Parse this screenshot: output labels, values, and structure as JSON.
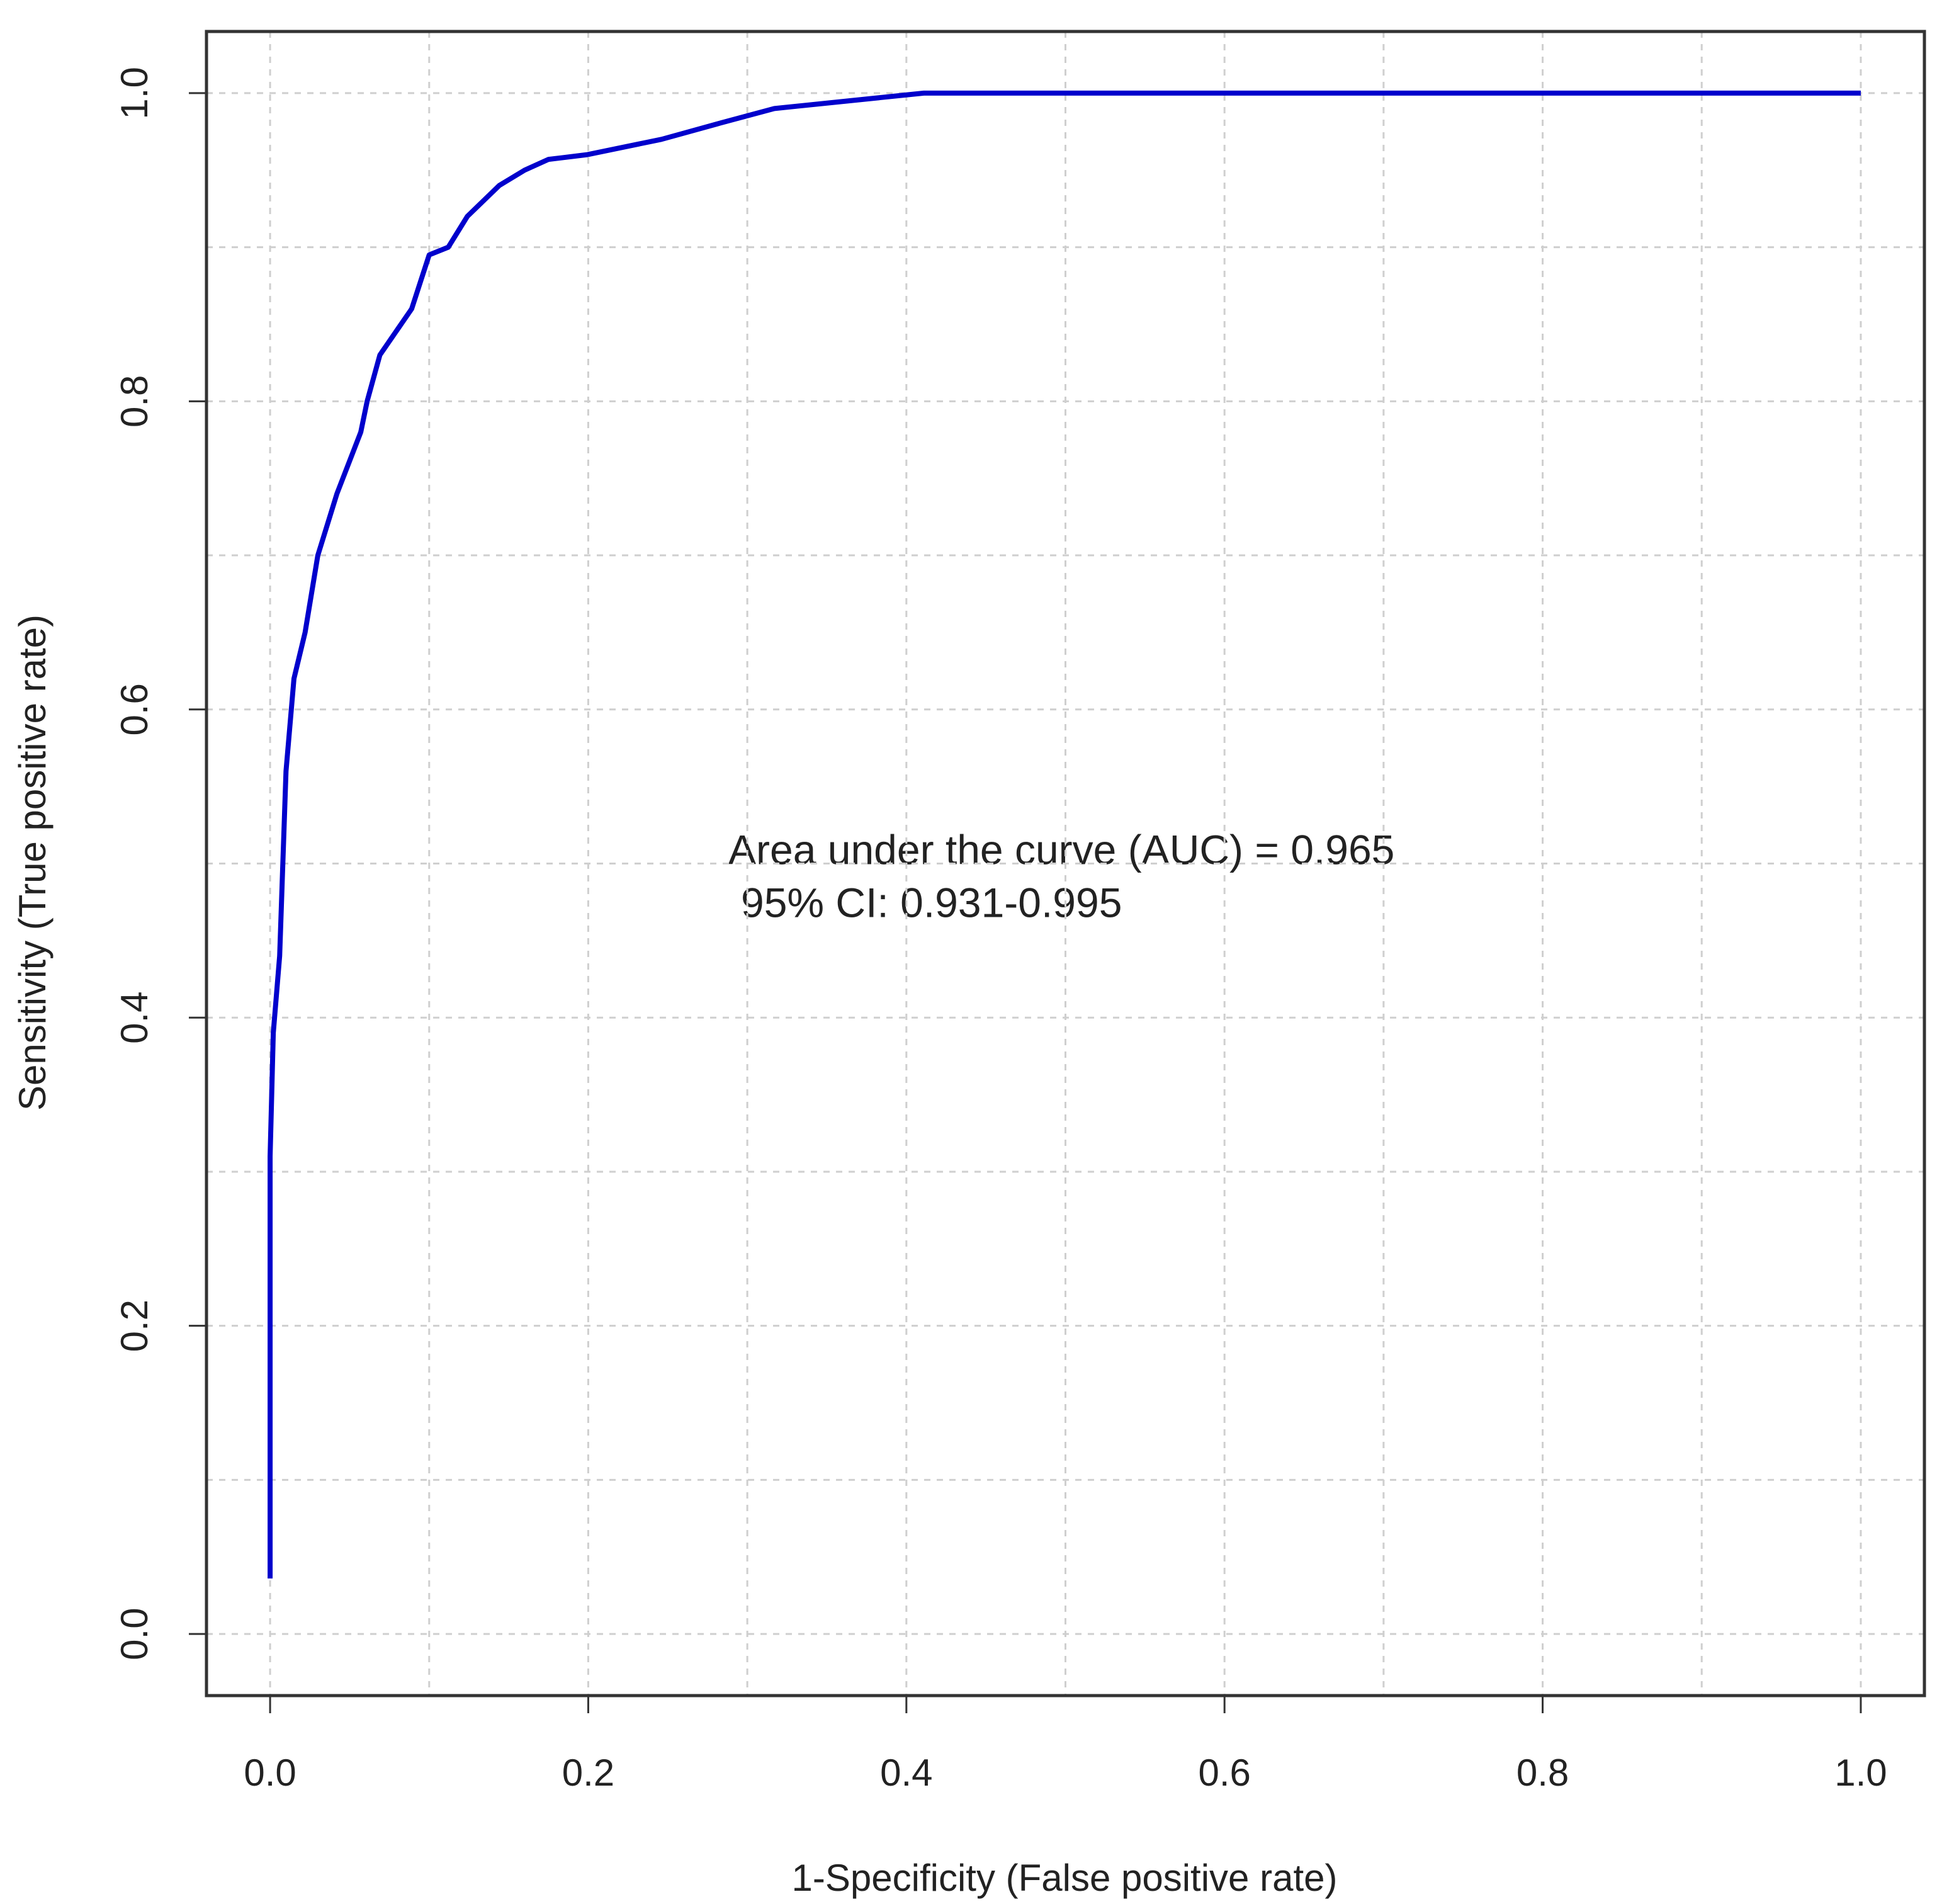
{
  "chart_data": {
    "type": "line",
    "x_label": "1-Specificity (False positive rate)",
    "y_label": "Sensitivity (True positive rate)",
    "annotations": [
      "Area under the curve (AUC) = 0.965",
      "95% CI: 0.931-0.995"
    ],
    "x": [
      0,
      0,
      0.002,
      0.006,
      0.01,
      0.015,
      0.022,
      0.03,
      0.042,
      0.057,
      0.061,
      0.069,
      0.089,
      0.1,
      0.112,
      0.124,
      0.144,
      0.16,
      0.175,
      0.199,
      0.246,
      0.281,
      0.317,
      0.364,
      0.411,
      1
    ],
    "values": [
      0.036,
      0.31,
      0.39,
      0.44,
      0.56,
      0.62,
      0.65,
      0.7,
      0.74,
      0.78,
      0.8,
      0.83,
      0.86,
      0.895,
      0.9,
      0.92,
      0.94,
      0.95,
      0.957,
      0.96,
      0.97,
      0.98,
      0.99,
      0.995,
      1,
      1
    ],
    "color": "#0000cc",
    "xlim": [
      -0.04,
      1.04
    ],
    "ylim": [
      -0.04,
      1.04
    ],
    "xticks": [
      {
        "value": 0,
        "label": "0.0"
      },
      0.2,
      0.4,
      0.6,
      0.8,
      {
        "value": 1,
        "label": "1.0"
      }
    ],
    "yticks": [
      {
        "value": 0,
        "label": "0.0"
      },
      0.2,
      0.4,
      0.6,
      0.8,
      {
        "value": 1,
        "label": "1.0"
      }
    ],
    "grid": true,
    "xgrid": [
      0,
      0.1,
      0.2,
      0.3,
      0.4,
      0.5,
      0.6,
      0.7,
      0.8,
      0.9,
      1
    ],
    "ygrid": [
      0,
      0.1,
      0.2,
      0.3,
      0.4,
      0.5,
      0.6,
      0.7,
      0.8,
      0.9,
      1
    ]
  }
}
